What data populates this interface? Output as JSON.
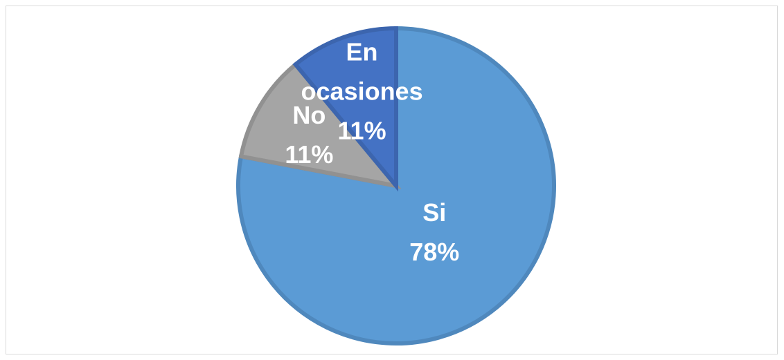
{
  "chart_data": {
    "type": "pie",
    "categories": [
      "Si",
      "No",
      "En ocasiones"
    ],
    "values": [
      78,
      11,
      11
    ],
    "value_labels": [
      "78%",
      "11%",
      "11%"
    ],
    "colors": [
      "#5b9bd5",
      "#a5a5a5",
      "#4472c4"
    ],
    "stroke_colors": [
      "#4f88bd",
      "#919191",
      "#3c65ae"
    ]
  }
}
